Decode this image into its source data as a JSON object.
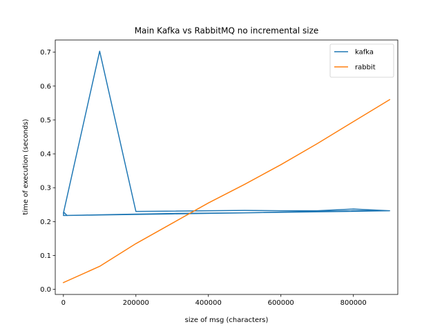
{
  "chart_data": {
    "type": "line",
    "title": "Main Kafka vs RabbitMQ no incremental size",
    "xlabel": "size of msg (characters)",
    "ylabel": "time of execution (seconds)",
    "xlim": [
      -22500,
      922500
    ],
    "ylim": [
      -0.015,
      0.736
    ],
    "xticks": [
      0,
      200000,
      400000,
      600000,
      800000
    ],
    "yticks": [
      0.0,
      0.1,
      0.2,
      0.3,
      0.4,
      0.5,
      0.6,
      0.7
    ],
    "xtick_labels": [
      "0",
      "200000",
      "400000",
      "600000",
      "800000"
    ],
    "ytick_labels": [
      "0.0",
      "0.1",
      "0.2",
      "0.3",
      "0.4",
      "0.5",
      "0.6",
      "0.7"
    ],
    "grid": false,
    "legend_position": "top-right",
    "series": [
      {
        "name": "kafka",
        "color": "#1f77b4",
        "x": [
          0,
          100000,
          200000,
          400000,
          500000,
          600000,
          700000,
          800000,
          900000,
          0,
          100000,
          200000,
          300000,
          400000,
          500000,
          600000,
          700000,
          800000,
          900000,
          100,
          1000,
          10000
        ],
        "y": [
          0.225,
          0.703,
          0.23,
          0.232,
          0.233,
          0.232,
          0.232,
          0.237,
          0.232,
          0.218,
          0.22,
          0.222,
          0.224,
          0.225,
          0.226,
          0.228,
          0.23,
          0.232,
          0.232,
          0.218,
          0.228,
          0.218
        ]
      },
      {
        "name": "rabbit",
        "color": "#ff7f0e",
        "x": [
          0,
          100000,
          200000,
          300000,
          400000,
          500000,
          600000,
          700000,
          800000,
          900000
        ],
        "y": [
          0.02,
          0.068,
          0.135,
          0.195,
          0.255,
          0.31,
          0.368,
          0.43,
          0.495,
          0.56
        ]
      }
    ]
  }
}
